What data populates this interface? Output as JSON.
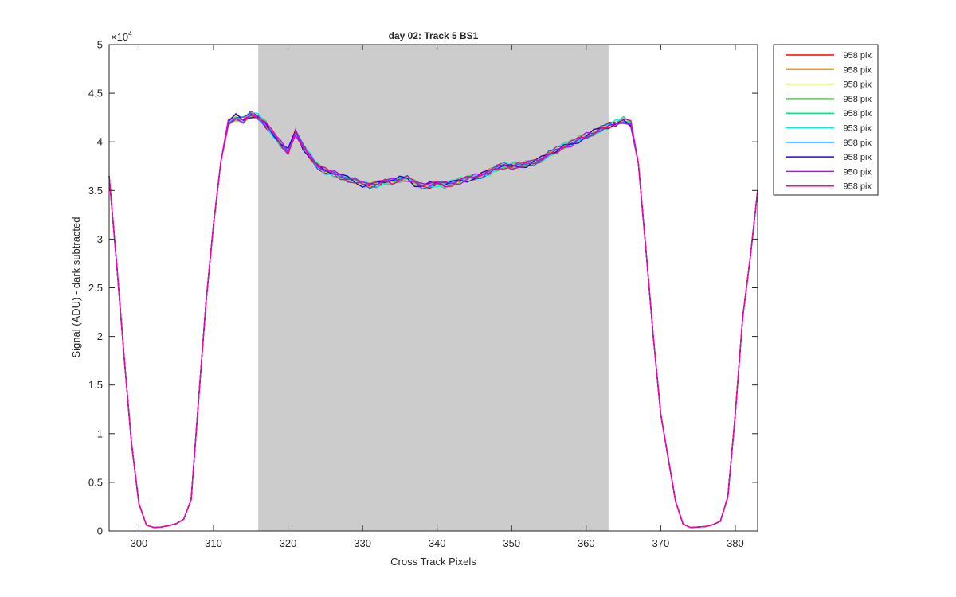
{
  "chart_data": {
    "type": "line",
    "title": "day 02: Track 5  BS1",
    "xlabel": "Cross Track Pixels",
    "ylabel": "Signal (ADU) - dark subtracted",
    "xlim": [
      296,
      383
    ],
    "ylim": [
      0,
      50000
    ],
    "y_exponent_label": "×10",
    "y_exponent_power": "4",
    "x_ticks": [
      300,
      310,
      320,
      330,
      340,
      350,
      360,
      370,
      380
    ],
    "y_ticks": [
      0,
      5000,
      10000,
      15000,
      20000,
      25000,
      30000,
      35000,
      40000,
      45000,
      50000
    ],
    "y_tick_labels": [
      "0",
      "0.5",
      "1",
      "1.5",
      "2",
      "2.5",
      "3",
      "3.5",
      "4",
      "4.5",
      "5"
    ],
    "shaded_region": {
      "x": [
        316,
        363
      ],
      "color": "#cccccc"
    },
    "grid": false,
    "legend_position": "outside-top-right",
    "x": [
      296,
      297,
      298,
      299,
      300,
      301,
      302,
      303,
      304,
      305,
      306,
      307,
      308,
      309,
      310,
      311,
      312,
      313,
      314,
      315,
      316,
      317,
      318,
      319,
      320,
      321,
      322,
      323,
      324,
      325,
      326,
      327,
      328,
      329,
      330,
      331,
      332,
      333,
      334,
      335,
      336,
      337,
      338,
      339,
      340,
      341,
      342,
      343,
      344,
      345,
      346,
      347,
      348,
      349,
      350,
      351,
      352,
      353,
      354,
      355,
      356,
      357,
      358,
      359,
      360,
      361,
      362,
      363,
      364,
      365,
      366,
      367,
      368,
      369,
      370,
      371,
      372,
      373,
      374,
      375,
      376,
      377,
      378,
      379,
      380,
      381,
      382,
      383
    ],
    "base": [
      36500,
      27500,
      18000,
      9000,
      2800,
      600,
      350,
      400,
      550,
      750,
      1200,
      3200,
      13500,
      23500,
      31500,
      38000,
      42000,
      42500,
      42200,
      42800,
      42600,
      41800,
      40800,
      39800,
      39000,
      41000,
      39500,
      38500,
      37500,
      37000,
      36800,
      36500,
      36200,
      36000,
      35700,
      35600,
      35700,
      35900,
      36000,
      36200,
      36300,
      35800,
      35500,
      35600,
      35700,
      35600,
      35800,
      36000,
      36200,
      36400,
      36600,
      36900,
      37300,
      37600,
      37500,
      37600,
      37700,
      37900,
      38200,
      38700,
      39100,
      39600,
      39800,
      40200,
      40600,
      40900,
      41300,
      41600,
      41900,
      42200,
      41800,
      37800,
      29000,
      20000,
      12000,
      7500,
      3000,
      700,
      350,
      400,
      450,
      650,
      1000,
      3500,
      12000,
      22000,
      28000,
      35000
    ],
    "series": [
      {
        "name": "958 pix",
        "color": "#ff0000"
      },
      {
        "name": "958 pix",
        "color": "#ff9900"
      },
      {
        "name": "958 pix",
        "color": "#d9f000"
      },
      {
        "name": "958 pix",
        "color": "#33ee22"
      },
      {
        "name": "958 pix",
        "color": "#00ee77"
      },
      {
        "name": "953 pix",
        "color": "#00eeee"
      },
      {
        "name": "958 pix",
        "color": "#0077ff"
      },
      {
        "name": "958 pix",
        "color": "#2200ee"
      },
      {
        "name": "950 pix",
        "color": "#cc00ff"
      },
      {
        "name": "958 pix",
        "color": "#ff0099"
      }
    ]
  }
}
